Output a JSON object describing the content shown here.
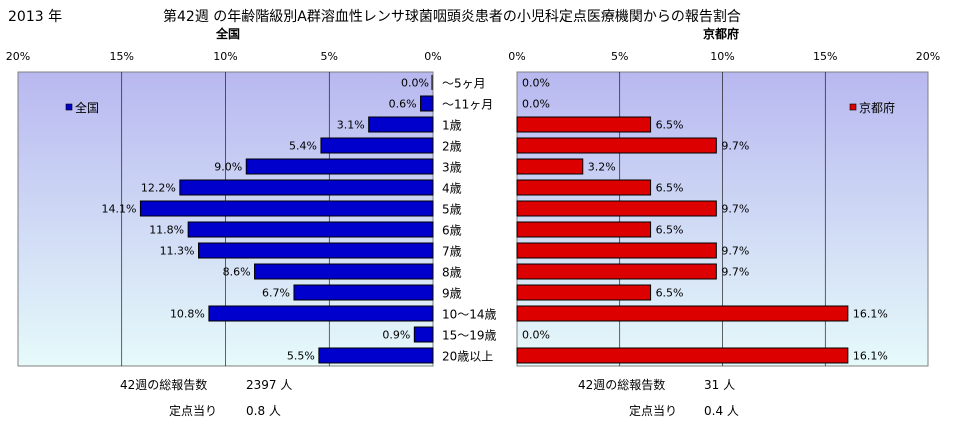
{
  "header": {
    "year": "2013 年",
    "title": "第42週 の年齢階級別A群溶血性レンサ球菌咽頭炎患者の小児科定点医療機関からの報告割合"
  },
  "colors": {
    "national_bar": "#0000cc",
    "kyoto_bar": "#dd0000",
    "plot_bg_top": "#b8b8f0",
    "plot_bg_bottom": "#e6fafa",
    "gridline": "#000000"
  },
  "chart_data": [
    {
      "type": "bar",
      "orientation": "horizontal",
      "x_direction": "reversed",
      "title": "全国",
      "legend": {
        "label": "全国",
        "position": "top-left"
      },
      "xlim": [
        0,
        20
      ],
      "x_ticks": [
        "20%",
        "15%",
        "10%",
        "5%",
        "0%"
      ],
      "grid": true,
      "categories": [
        "～5ヶ月",
        "～11ヶ月",
        "1歳",
        "2歳",
        "3歳",
        "4歳",
        "5歳",
        "6歳",
        "7歳",
        "8歳",
        "9歳",
        "10～14歳",
        "15～19歳",
        "20歳以上"
      ],
      "values": [
        0.0,
        0.6,
        3.1,
        5.4,
        9.0,
        12.2,
        14.1,
        11.8,
        11.3,
        8.6,
        6.7,
        10.8,
        0.9,
        5.5
      ],
      "data_labels": [
        "0.0%",
        "0.6%",
        "3.1%",
        "5.4%",
        "9.0%",
        "12.2%",
        "14.1%",
        "11.8%",
        "11.3%",
        "8.6%",
        "6.7%",
        "10.8%",
        "0.9%",
        "5.5%"
      ]
    },
    {
      "type": "bar",
      "orientation": "horizontal",
      "title": "京都府",
      "legend": {
        "label": "京都府",
        "position": "top-right"
      },
      "xlim": [
        0,
        20
      ],
      "x_ticks": [
        "0%",
        "5%",
        "10%",
        "15%",
        "20%"
      ],
      "grid": true,
      "categories": [
        "～5ヶ月",
        "～11ヶ月",
        "1歳",
        "2歳",
        "3歳",
        "4歳",
        "5歳",
        "6歳",
        "7歳",
        "8歳",
        "9歳",
        "10～14歳",
        "15～19歳",
        "20歳以上"
      ],
      "values": [
        0.0,
        0.0,
        6.5,
        9.7,
        3.2,
        6.5,
        9.7,
        6.5,
        9.7,
        9.7,
        6.5,
        16.1,
        0.0,
        16.1
      ],
      "data_labels": [
        "0.0%",
        "0.0%",
        "6.5%",
        "9.7%",
        "3.2%",
        "6.5%",
        "9.7%",
        "6.5%",
        "9.7%",
        "9.7%",
        "6.5%",
        "16.1%",
        "0.0%",
        "16.1%"
      ]
    }
  ],
  "footer": {
    "national": {
      "total_label": "42週の総報告数",
      "total_value": "2397 人",
      "per_site_label": "定点当り",
      "per_site_value": "0.8 人"
    },
    "kyoto": {
      "total_label": "42週の総報告数",
      "total_value": "31 人",
      "per_site_label": "定点当り",
      "per_site_value": "0.4 人"
    }
  }
}
